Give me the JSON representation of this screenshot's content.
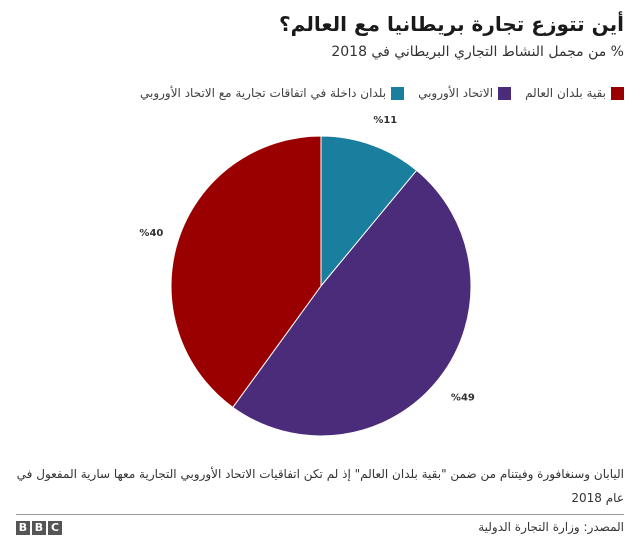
{
  "title": "أين تتوزع تجارة بريطانيا مع العالم؟",
  "subtitle": "% من مجمل النشاط التجاري البريطاني في 2018",
  "note": "اليابان وسنغافورة وفيتنام من ضمن \"بقية بلدان العالم\" إذ لم تكن اتفاقيات الاتحاد الأوروبي التجارية معها سارية المفعول في عام 2018",
  "source": "المصدر: وزارة التجارة الدولية",
  "logo": [
    "B",
    "B",
    "C"
  ],
  "chart_data": {
    "type": "pie",
    "title": "أين تتوزع تجارة بريطانيا مع العالم؟",
    "subtitle": "% من مجمل النشاط التجاري البريطاني في 2018",
    "legend_position": "top",
    "start_angle_deg": 0,
    "slices": [
      {
        "name": "بلدان داخلة في اتفاقات تجارية مع الاتحاد الأوروبي",
        "value": 11,
        "label": "%11",
        "color": "#1a7e9e"
      },
      {
        "name": "الاتحاد الأوروبي",
        "value": 49,
        "label": "%49",
        "color": "#4b2c7a"
      },
      {
        "name": "بقية بلدان العالم",
        "value": 40,
        "label": "%40",
        "color": "#9b0000"
      }
    ],
    "legend_order": [
      2,
      1,
      0
    ]
  }
}
